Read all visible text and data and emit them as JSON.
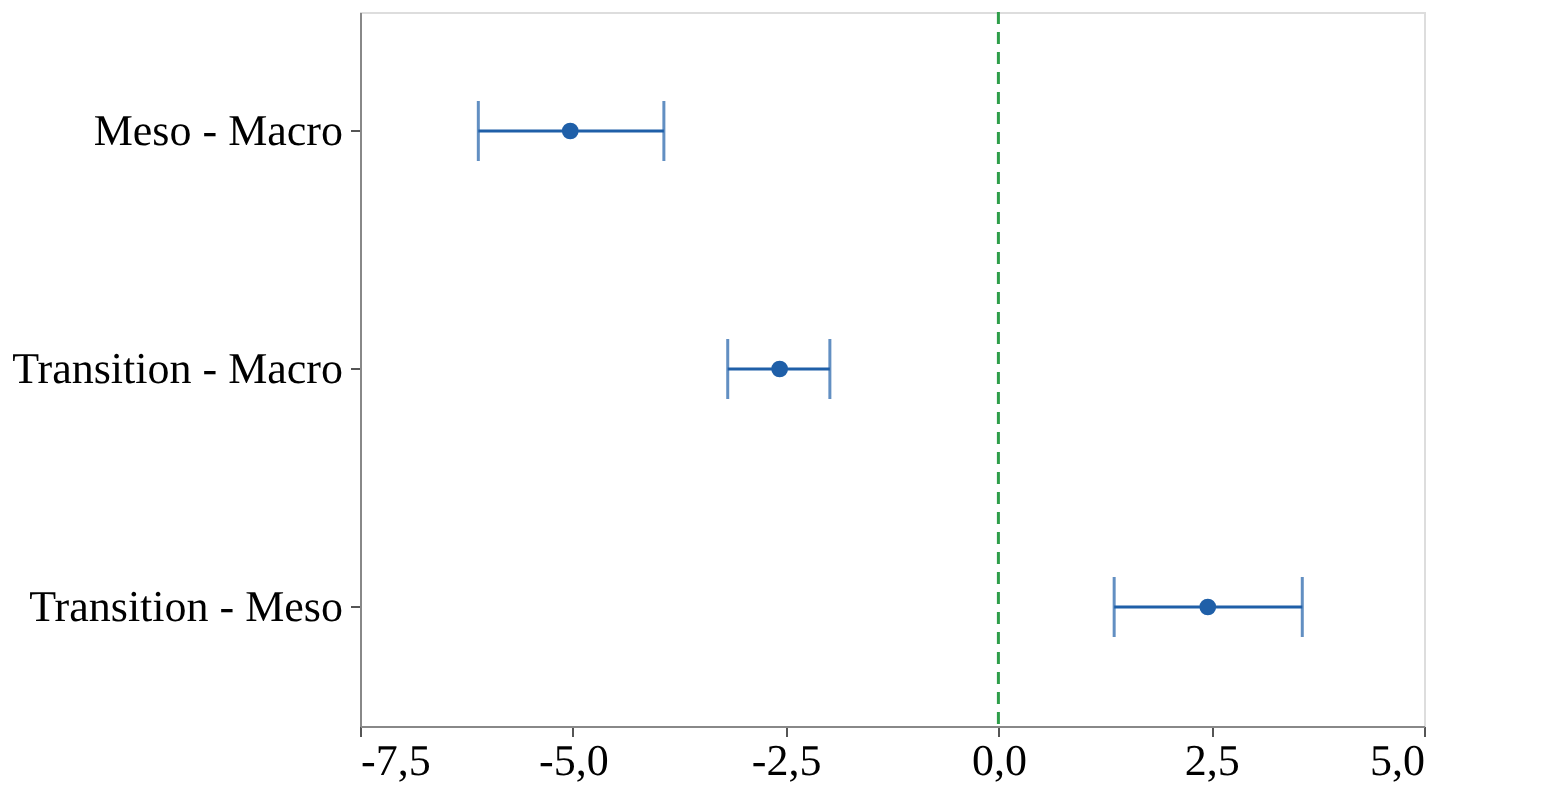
{
  "chart_data": {
    "type": "scatter",
    "orientation": "horizontal",
    "categories": [
      "Meso - Macro",
      "Transition - Macro",
      "Transition - Meso"
    ],
    "series": [
      {
        "color": "#1f5fa8",
        "values": [
          -5.03,
          -2.57,
          2.46
        ],
        "errors": [
          [
            -6.11,
            -3.93
          ],
          [
            -3.18,
            -1.98
          ],
          [
            1.36,
            3.57
          ]
        ]
      }
    ],
    "xlim": [
      -7.5,
      5.0
    ],
    "xticks": [
      {
        "value": -7.5,
        "label": "-7,5"
      },
      {
        "value": -5.0,
        "label": "-5,0"
      },
      {
        "value": -2.5,
        "label": "-2,5"
      },
      {
        "value": 0.0,
        "label": "0,0"
      },
      {
        "value": 2.5,
        "label": "2,5"
      },
      {
        "value": 5.0,
        "label": "5,0"
      }
    ],
    "ref_lines": [
      {
        "axis": "x",
        "value": 0,
        "color": "#2e9e4a",
        "line_style": "dashed"
      }
    ],
    "marker": "circle",
    "grid": false
  }
}
